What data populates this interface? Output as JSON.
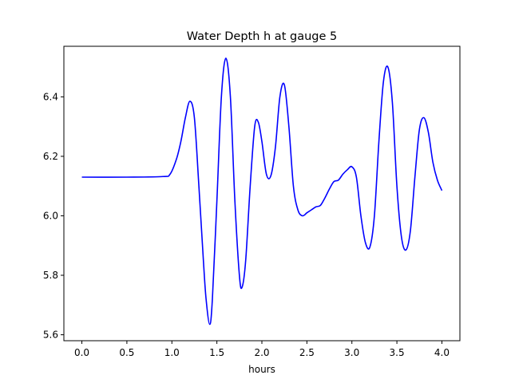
{
  "chart_data": {
    "type": "line",
    "title": "Water Depth h at gauge 5",
    "xlabel": "hours",
    "ylabel": "",
    "xlim": [
      -0.2,
      4.2
    ],
    "ylim": [
      5.58,
      6.57
    ],
    "xticks": [
      0.0,
      0.5,
      1.0,
      1.5,
      2.0,
      2.5,
      3.0,
      3.5,
      4.0
    ],
    "xtick_labels": [
      "0.0",
      "0.5",
      "1.0",
      "1.5",
      "2.0",
      "2.5",
      "3.0",
      "3.5",
      "4.0"
    ],
    "yticks": [
      5.6,
      5.8,
      6.0,
      6.2,
      6.4
    ],
    "ytick_labels": [
      "5.6",
      "5.8",
      "6.0",
      "6.2",
      "6.4"
    ],
    "grid": false,
    "series": [
      {
        "color": "#0000ff",
        "x": [
          0.0,
          0.5,
          0.9,
          0.98,
          1.05,
          1.1,
          1.15,
          1.2,
          1.25,
          1.3,
          1.35,
          1.38,
          1.42,
          1.45,
          1.5,
          1.55,
          1.6,
          1.65,
          1.7,
          1.75,
          1.78,
          1.82,
          1.87,
          1.92,
          1.96,
          2.0,
          2.05,
          2.1,
          2.15,
          2.2,
          2.25,
          2.3,
          2.35,
          2.4,
          2.45,
          2.5,
          2.55,
          2.6,
          2.65,
          2.7,
          2.75,
          2.8,
          2.85,
          2.9,
          2.95,
          3.0,
          3.05,
          3.1,
          3.15,
          3.2,
          3.25,
          3.3,
          3.35,
          3.4,
          3.45,
          3.5,
          3.55,
          3.6,
          3.65,
          3.7,
          3.75,
          3.8,
          3.85,
          3.9,
          3.95,
          4.0
        ],
        "y": [
          6.13,
          6.13,
          6.132,
          6.14,
          6.19,
          6.25,
          6.33,
          6.385,
          6.33,
          6.1,
          5.85,
          5.72,
          5.635,
          5.72,
          6.05,
          6.4,
          6.53,
          6.4,
          6.05,
          5.8,
          5.76,
          5.85,
          6.1,
          6.3,
          6.315,
          6.25,
          6.14,
          6.135,
          6.23,
          6.4,
          6.44,
          6.3,
          6.1,
          6.02,
          6.0,
          6.01,
          6.02,
          6.03,
          6.035,
          6.06,
          6.09,
          6.115,
          6.12,
          6.14,
          6.155,
          6.165,
          6.13,
          6.0,
          5.91,
          5.895,
          6.0,
          6.25,
          6.45,
          6.5,
          6.38,
          6.1,
          5.93,
          5.885,
          5.95,
          6.13,
          6.29,
          6.33,
          6.28,
          6.18,
          6.12,
          6.085
        ]
      }
    ]
  }
}
